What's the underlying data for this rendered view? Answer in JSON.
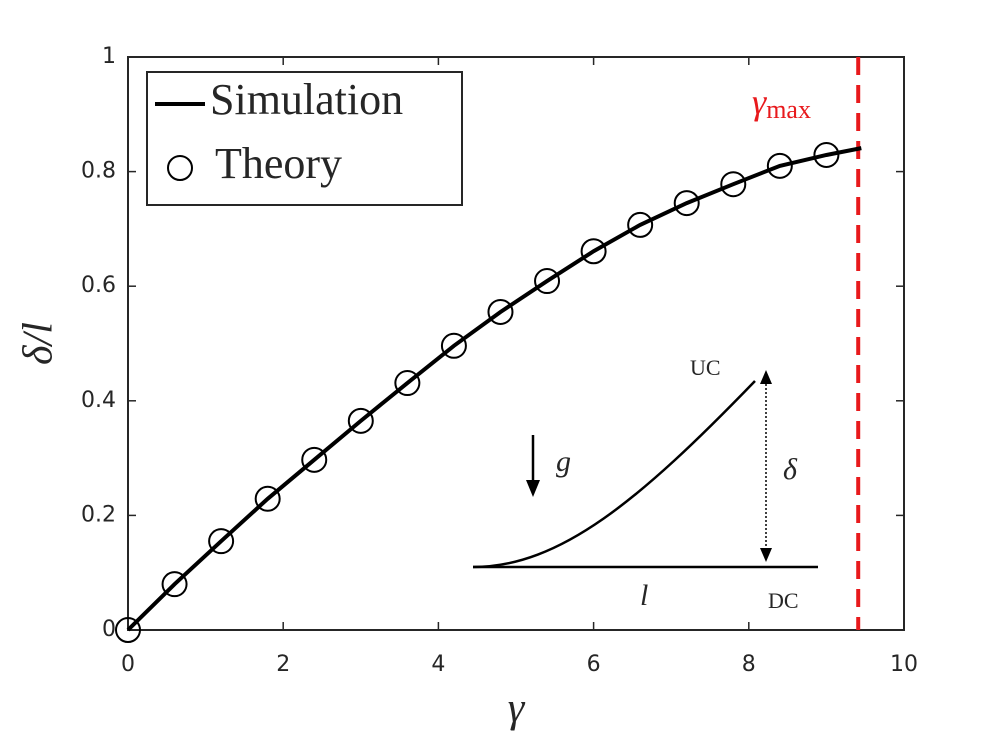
{
  "chart_data": {
    "type": "line",
    "xlabel": "γ",
    "ylabel": "δ/l",
    "xlim": [
      0,
      10
    ],
    "ylim": [
      0,
      1
    ],
    "xticks": [
      0,
      2,
      4,
      6,
      8,
      10
    ],
    "yticks": [
      0,
      0.2,
      0.4,
      0.6,
      0.8,
      1
    ],
    "series": [
      {
        "name": "Simulation",
        "color": "#000000",
        "style": "line",
        "x": [
          0,
          0.6,
          1.2,
          1.8,
          2.4,
          3.0,
          3.6,
          4.2,
          4.8,
          5.4,
          6.0,
          6.6,
          7.2,
          7.8,
          8.4,
          9.0,
          9.45
        ],
        "values": [
          0,
          0.08,
          0.155,
          0.229,
          0.297,
          0.365,
          0.431,
          0.496,
          0.555,
          0.609,
          0.661,
          0.707,
          0.745,
          0.778,
          0.81,
          0.829,
          0.841
        ]
      },
      {
        "name": "Theory",
        "color": "#000000",
        "style": "marker",
        "x": [
          0,
          0.6,
          1.2,
          1.8,
          2.4,
          3.0,
          3.6,
          4.2,
          4.8,
          5.4,
          6.0,
          6.6,
          7.2,
          7.8,
          8.4,
          9.0
        ],
        "values": [
          0,
          0.08,
          0.155,
          0.229,
          0.297,
          0.365,
          0.431,
          0.496,
          0.555,
          0.609,
          0.661,
          0.707,
          0.745,
          0.778,
          0.81,
          0.829
        ]
      }
    ],
    "vline": {
      "value": 9.41,
      "color": "#e8191c",
      "label": {
        "symbol": "γ",
        "subscript": "max"
      }
    },
    "legend": "upper left",
    "inset": {
      "top_label": "UC",
      "bottom_label": "DC",
      "height_label": "δ",
      "gravity_label": "g",
      "length_label": "l"
    }
  }
}
